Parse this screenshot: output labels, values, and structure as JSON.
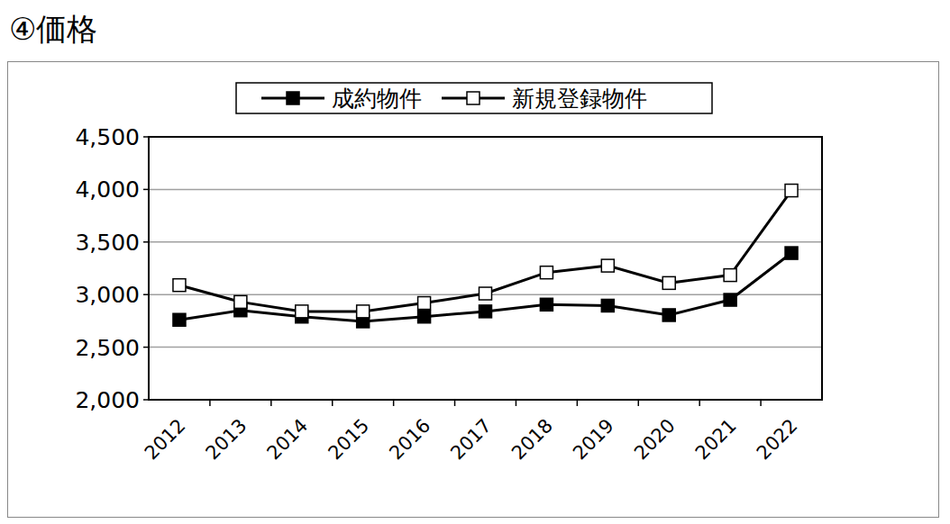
{
  "chart_data": {
    "type": "line",
    "title": "④価格",
    "categories": [
      "2012",
      "2013",
      "2014",
      "2015",
      "2016",
      "2017",
      "2018",
      "2019",
      "2020",
      "2021",
      "2022"
    ],
    "series": [
      {
        "name": "成約物件",
        "color": "#000000",
        "marker": "filled-square",
        "values": [
          2760,
          2850,
          2790,
          2745,
          2790,
          2840,
          2905,
          2895,
          2805,
          2950,
          3395
        ]
      },
      {
        "name": "新規登録物件",
        "color": "#000000",
        "marker": "open-square",
        "values": [
          3090,
          2930,
          2840,
          2840,
          2920,
          3010,
          3210,
          3275,
          3110,
          3185,
          3990
        ]
      }
    ],
    "ylim": [
      2000,
      4500
    ],
    "yticks": [
      {
        "value": 2000,
        "label": "2,000"
      },
      {
        "value": 2500,
        "label": "2,500"
      },
      {
        "value": 3000,
        "label": "3,000"
      },
      {
        "value": 3500,
        "label": "3,500"
      },
      {
        "value": 4000,
        "label": "4,000"
      },
      {
        "value": 4500,
        "label": "4,500"
      }
    ],
    "grid": true,
    "legend": "top"
  }
}
